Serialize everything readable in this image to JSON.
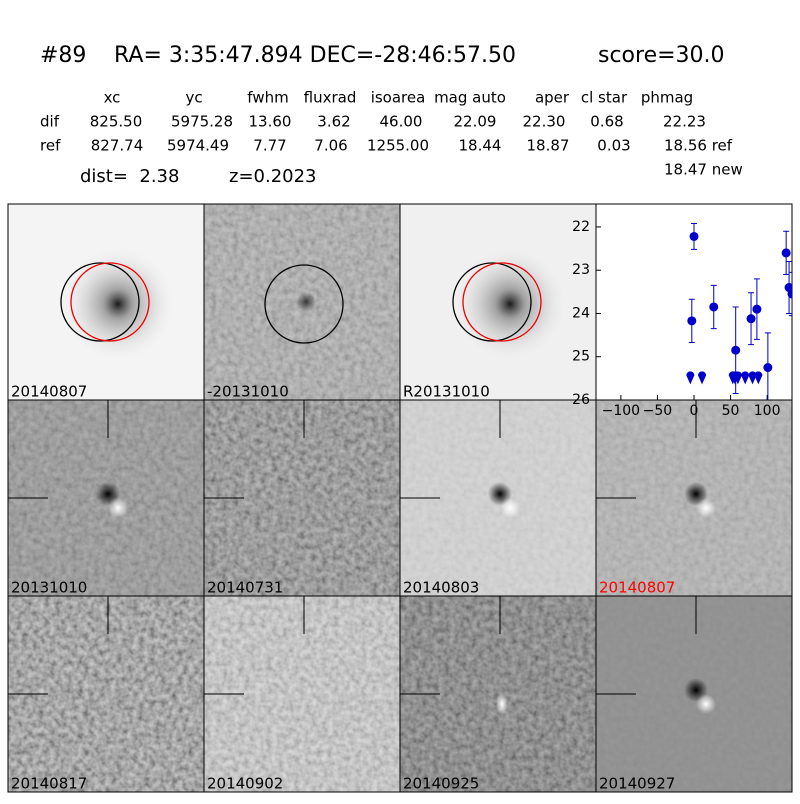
{
  "header": {
    "id": "#89",
    "coords": "RA= 3:35:47.894 DEC=-28:46:57.50",
    "score": "score=30.0"
  },
  "table": {
    "columns": [
      "xc",
      "yc",
      "fwhm",
      "fluxrad",
      "isoarea",
      "mag auto",
      "aper",
      "cl star",
      "phmag"
    ],
    "rows": [
      [
        "dif",
        "825.50",
        "5975.28",
        "13.60",
        "3.62",
        "46.00",
        "22.09",
        "22.30",
        "0.68",
        "22.23"
      ],
      [
        "ref",
        "827.74",
        "5974.49",
        "7.77",
        "7.06",
        "1255.00",
        "18.44",
        "18.87",
        "0.03",
        "18.56 ref"
      ]
    ],
    "extra": "18.47 new"
  },
  "info": {
    "dist": "dist=  2.38",
    "z": "z=0.2023"
  },
  "panels": [
    {
      "label": "20140807",
      "color": "#000000"
    },
    {
      "label": "-20131010",
      "color": "#000000"
    },
    {
      "label": "R20131010",
      "color": "#000000"
    },
    {
      "label": "20131010",
      "color": "#000000"
    },
    {
      "label": "20140731",
      "color": "#000000"
    },
    {
      "label": "20140803",
      "color": "#000000"
    },
    {
      "label": "20140807",
      "color": "#ff0000"
    },
    {
      "label": "20140817",
      "color": "#000000"
    },
    {
      "label": "20140902",
      "color": "#000000"
    },
    {
      "label": "20140925",
      "color": "#000000"
    },
    {
      "label": "20140927",
      "color": "#000000"
    }
  ],
  "chart_data": {
    "type": "scatter",
    "xlim": [
      -134,
      134
    ],
    "ylim": [
      26,
      21.47
    ],
    "xticks": [
      {
        "value": -100,
        "label": "−100"
      },
      {
        "value": -50,
        "label": "−50"
      },
      0,
      50,
      100
    ],
    "yticks": [
      22,
      23,
      24,
      25,
      26
    ],
    "series": [
      {
        "color": "#0000cc",
        "marker": "circle",
        "x": [
          -3,
          0,
          27,
          57,
          78,
          86,
          101,
          126,
          130,
          134
        ],
        "values": [
          24.17,
          22.22,
          23.85,
          24.85,
          24.12,
          23.9,
          25.25,
          22.6,
          23.4,
          23.55
        ],
        "errors": [
          0.5,
          0.3,
          0.5,
          1.0,
          0.6,
          0.7,
          0.8,
          0.5,
          0.6,
          0.5
        ]
      },
      {
        "color": "#0000cc",
        "marker": "upper-limit",
        "x": [
          -5,
          11,
          53,
          56,
          60,
          70,
          80,
          88
        ],
        "values": [
          25.5,
          25.5,
          25.5,
          25.5,
          25.5,
          25.5,
          25.5,
          25.5
        ]
      }
    ]
  }
}
